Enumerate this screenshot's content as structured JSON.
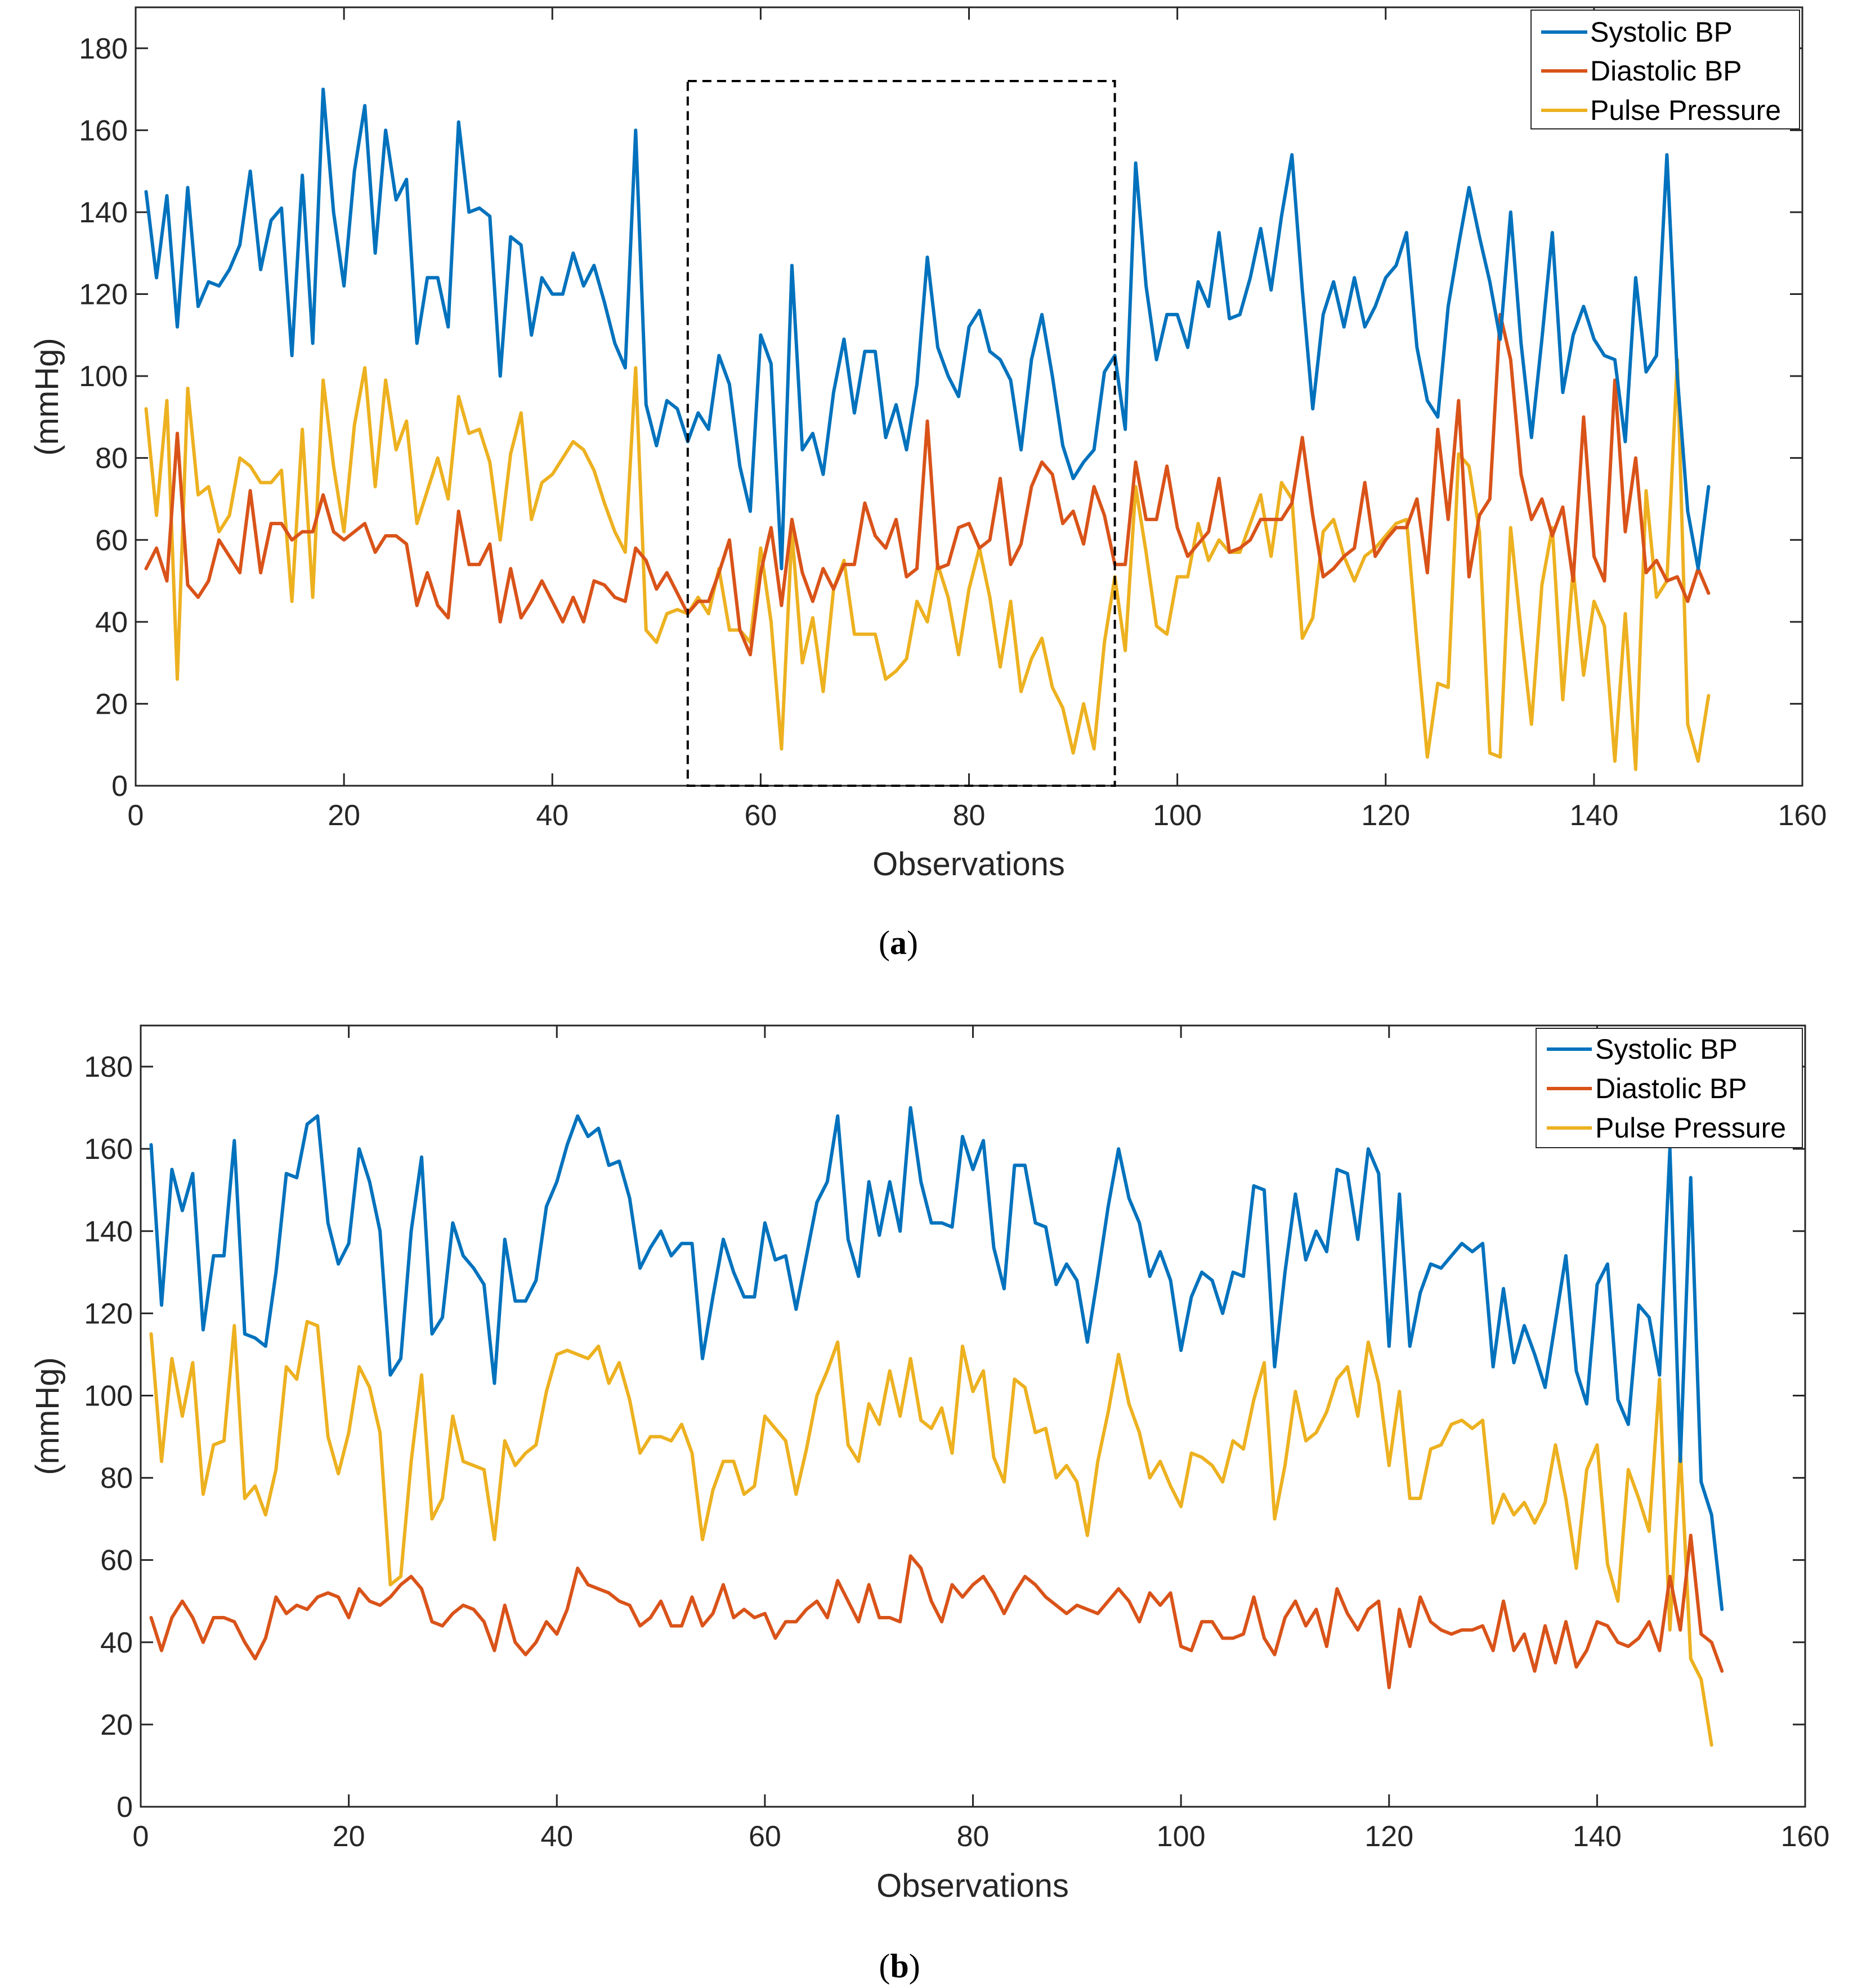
{
  "chart_data": [
    {
      "type": "line",
      "caption": "(a)",
      "caption_paren_open": "(",
      "caption_letter": "a",
      "caption_paren_close": ")",
      "xlabel": "Observations",
      "ylabel": "(mmHg)",
      "xlim": [
        0,
        160
      ],
      "ylim": [
        0,
        190
      ],
      "xticks": [
        0,
        20,
        40,
        60,
        80,
        100,
        120,
        140,
        160
      ],
      "yticks": [
        0,
        20,
        40,
        60,
        80,
        100,
        120,
        140,
        160,
        180
      ],
      "grid": false,
      "legend_position": "top-right",
      "highlight_box": {
        "x_range": [
          53,
          94
        ],
        "y_range": [
          0,
          172
        ],
        "style": "dashed"
      },
      "series": [
        {
          "name": "Systolic BP",
          "color": "#0072BD",
          "values": [
            145,
            124,
            144,
            112,
            146,
            117,
            123,
            122,
            126,
            132,
            150,
            126,
            138,
            141,
            105,
            149,
            108,
            170,
            140,
            122,
            150,
            166,
            130,
            160,
            143,
            148,
            108,
            124,
            124,
            112,
            162,
            140,
            141,
            139,
            100,
            134,
            132,
            110,
            124,
            120,
            120,
            130,
            122,
            127,
            118,
            108,
            102,
            160,
            93,
            83,
            94,
            92,
            84,
            91,
            87,
            105,
            98,
            78,
            67,
            110,
            103,
            53,
            127,
            82,
            86,
            76,
            96,
            109,
            91,
            106,
            106,
            85,
            93,
            82,
            98,
            129,
            107,
            100,
            95,
            112,
            116,
            106,
            104,
            99,
            82,
            104,
            115,
            100,
            83,
            75,
            79,
            82,
            101,
            105,
            87,
            152,
            122,
            104,
            115,
            115,
            107,
            123,
            117,
            135,
            114,
            115,
            124,
            136,
            121,
            139,
            154,
            121,
            92,
            115,
            123,
            112,
            124,
            112,
            117,
            124,
            127,
            135,
            107,
            94,
            90,
            117,
            132,
            146,
            134,
            123,
            109,
            140,
            108,
            85,
            109,
            135,
            96,
            110,
            117,
            109,
            105,
            104,
            84,
            124,
            101,
            105,
            154,
            100,
            67,
            53,
            73
          ]
        },
        {
          "name": "Diastolic BP",
          "color": "#D95319",
          "values": [
            53,
            58,
            50,
            86,
            49,
            46,
            50,
            60,
            56,
            52,
            72,
            52,
            64,
            64,
            60,
            62,
            62,
            71,
            62,
            60,
            62,
            64,
            57,
            61,
            61,
            59,
            44,
            52,
            44,
            41,
            67,
            54,
            54,
            59,
            40,
            53,
            41,
            45,
            50,
            45,
            40,
            46,
            40,
            50,
            49,
            46,
            45,
            58,
            55,
            48,
            52,
            47,
            42,
            45,
            45,
            52,
            60,
            38,
            32,
            52,
            63,
            44,
            65,
            52,
            45,
            53,
            48,
            54,
            54,
            69,
            61,
            58,
            65,
            51,
            53,
            89,
            53,
            54,
            63,
            64,
            58,
            60,
            75,
            54,
            59,
            73,
            79,
            76,
            64,
            67,
            59,
            73,
            66,
            54,
            54,
            79,
            65,
            65,
            78,
            63,
            56,
            59,
            62,
            75,
            57,
            58,
            60,
            65,
            65,
            65,
            69,
            85,
            66,
            51,
            53,
            56,
            58,
            74,
            56,
            60,
            63,
            63,
            70,
            52,
            87,
            65,
            94,
            51,
            66,
            70,
            115,
            104,
            76,
            65,
            70,
            61,
            68,
            50,
            90,
            56,
            50,
            99,
            62,
            80,
            52,
            55,
            50,
            51,
            45,
            53,
            47
          ]
        },
        {
          "name": "Pulse Pressure",
          "color": "#EDB120",
          "values": [
            92,
            66,
            94,
            26,
            97,
            71,
            73,
            62,
            66,
            80,
            78,
            74,
            74,
            77,
            45,
            87,
            46,
            99,
            78,
            62,
            88,
            102,
            73,
            99,
            82,
            89,
            64,
            72,
            80,
            70,
            95,
            86,
            87,
            79,
            60,
            81,
            91,
            65,
            74,
            76,
            80,
            84,
            82,
            77,
            69,
            62,
            57,
            102,
            38,
            35,
            42,
            43,
            42,
            46,
            42,
            53,
            38,
            38,
            35,
            58,
            40,
            9,
            62,
            30,
            41,
            23,
            48,
            55,
            37,
            37,
            37,
            26,
            28,
            31,
            45,
            40,
            54,
            46,
            32,
            48,
            58,
            46,
            29,
            45,
            23,
            31,
            36,
            24,
            19,
            8,
            20,
            9,
            35,
            51,
            33,
            73,
            57,
            39,
            37,
            51,
            51,
            64,
            55,
            60,
            57,
            57,
            64,
            71,
            56,
            74,
            70,
            36,
            41,
            62,
            65,
            56,
            50,
            56,
            58,
            61,
            64,
            65,
            35,
            7,
            25,
            24,
            81,
            78,
            62,
            8,
            7,
            63,
            38,
            15,
            49,
            63,
            21,
            53,
            27,
            45,
            39,
            6,
            42,
            4,
            72,
            46,
            50,
            104,
            15,
            6,
            22
          ]
        }
      ]
    },
    {
      "type": "line",
      "caption": "(b)",
      "caption_paren_open": "(",
      "caption_letter": "b",
      "caption_paren_close": ")",
      "xlabel": "Observations",
      "ylabel": "(mmHg)",
      "xlim": [
        0,
        160
      ],
      "ylim": [
        0,
        190
      ],
      "xticks": [
        0,
        20,
        40,
        60,
        80,
        100,
        120,
        140,
        160
      ],
      "yticks": [
        0,
        20,
        40,
        60,
        80,
        100,
        120,
        140,
        160,
        180
      ],
      "grid": false,
      "legend_position": "top-right",
      "series": [
        {
          "name": "Systolic BP",
          "color": "#0072BD",
          "values": [
            161,
            122,
            155,
            145,
            154,
            116,
            134,
            134,
            162,
            115,
            114,
            112,
            130,
            154,
            153,
            166,
            168,
            142,
            132,
            137,
            160,
            152,
            140,
            105,
            109,
            140,
            158,
            115,
            119,
            142,
            134,
            131,
            127,
            103,
            138,
            123,
            123,
            128,
            146,
            152,
            161,
            168,
            163,
            165,
            156,
            157,
            148,
            131,
            136,
            140,
            134,
            137,
            137,
            109,
            124,
            138,
            130,
            124,
            124,
            142,
            133,
            134,
            121,
            134,
            147,
            152,
            168,
            138,
            129,
            152,
            139,
            152,
            140,
            170,
            152,
            142,
            142,
            141,
            163,
            155,
            162,
            136,
            126,
            156,
            156,
            142,
            141,
            127,
            132,
            128,
            113,
            129,
            146,
            160,
            148,
            142,
            129,
            135,
            128,
            111,
            124,
            130,
            128,
            120,
            130,
            129,
            151,
            150,
            107,
            130,
            149,
            133,
            140,
            135,
            155,
            154,
            138,
            160,
            154,
            112,
            149,
            112,
            125,
            132,
            131,
            134,
            137,
            135,
            137,
            107,
            126,
            108,
            117,
            110,
            102,
            118,
            134,
            106,
            98,
            127,
            132,
            99,
            93,
            122,
            119,
            105,
            160,
            84,
            153,
            79,
            71,
            48
          ]
        },
        {
          "name": "Diastolic BP",
          "color": "#D95319",
          "values": [
            46,
            38,
            46,
            50,
            46,
            40,
            46,
            46,
            45,
            40,
            36,
            41,
            51,
            47,
            49,
            48,
            51,
            52,
            51,
            46,
            53,
            50,
            49,
            51,
            54,
            56,
            53,
            45,
            44,
            47,
            49,
            48,
            45,
            38,
            49,
            40,
            37,
            40,
            45,
            42,
            48,
            58,
            54,
            53,
            52,
            50,
            49,
            44,
            46,
            50,
            44,
            44,
            51,
            44,
            47,
            54,
            46,
            48,
            46,
            47,
            41,
            45,
            45,
            48,
            50,
            46,
            55,
            50,
            45,
            54,
            46,
            46,
            45,
            61,
            58,
            50,
            45,
            54,
            51,
            54,
            56,
            52,
            47,
            52,
            56,
            54,
            51,
            49,
            47,
            49,
            48,
            47,
            50,
            53,
            50,
            45,
            52,
            49,
            52,
            39,
            38,
            45,
            45,
            41,
            41,
            42,
            51,
            41,
            37,
            46,
            50,
            44,
            48,
            39,
            53,
            47,
            43,
            48,
            50,
            29,
            48,
            39,
            51,
            45,
            43,
            42,
            43,
            43,
            44,
            38,
            50,
            38,
            42,
            33,
            44,
            35,
            45,
            34,
            38,
            45,
            44,
            40,
            39,
            41,
            45,
            38,
            56,
            43,
            66,
            42,
            40,
            33
          ]
        },
        {
          "name": "Pulse Pressure",
          "color": "#EDB120",
          "values": [
            115,
            84,
            109,
            95,
            108,
            76,
            88,
            89,
            117,
            75,
            78,
            71,
            82,
            107,
            104,
            118,
            117,
            90,
            81,
            91,
            107,
            102,
            91,
            54,
            56,
            84,
            105,
            70,
            75,
            95,
            84,
            83,
            82,
            65,
            89,
            83,
            86,
            88,
            101,
            110,
            111,
            110,
            109,
            112,
            103,
            108,
            99,
            86,
            90,
            90,
            89,
            93,
            86,
            65,
            77,
            84,
            84,
            76,
            78,
            95,
            92,
            89,
            76,
            87,
            100,
            106,
            113,
            88,
            84,
            98,
            93,
            106,
            95,
            109,
            94,
            92,
            97,
            86,
            112,
            101,
            106,
            85,
            79,
            104,
            102,
            91,
            92,
            80,
            83,
            79,
            66,
            84,
            96,
            110,
            98,
            91,
            80,
            84,
            78,
            73,
            86,
            85,
            83,
            79,
            89,
            87,
            99,
            108,
            70,
            83,
            101,
            89,
            91,
            96,
            104,
            107,
            95,
            113,
            103,
            83,
            101,
            75,
            75,
            87,
            88,
            93,
            94,
            92,
            94,
            69,
            76,
            71,
            74,
            69,
            74,
            88,
            75,
            58,
            82,
            88,
            59,
            50,
            82,
            75,
            67,
            104,
            43,
            87,
            36,
            31,
            15
          ]
        }
      ]
    }
  ]
}
